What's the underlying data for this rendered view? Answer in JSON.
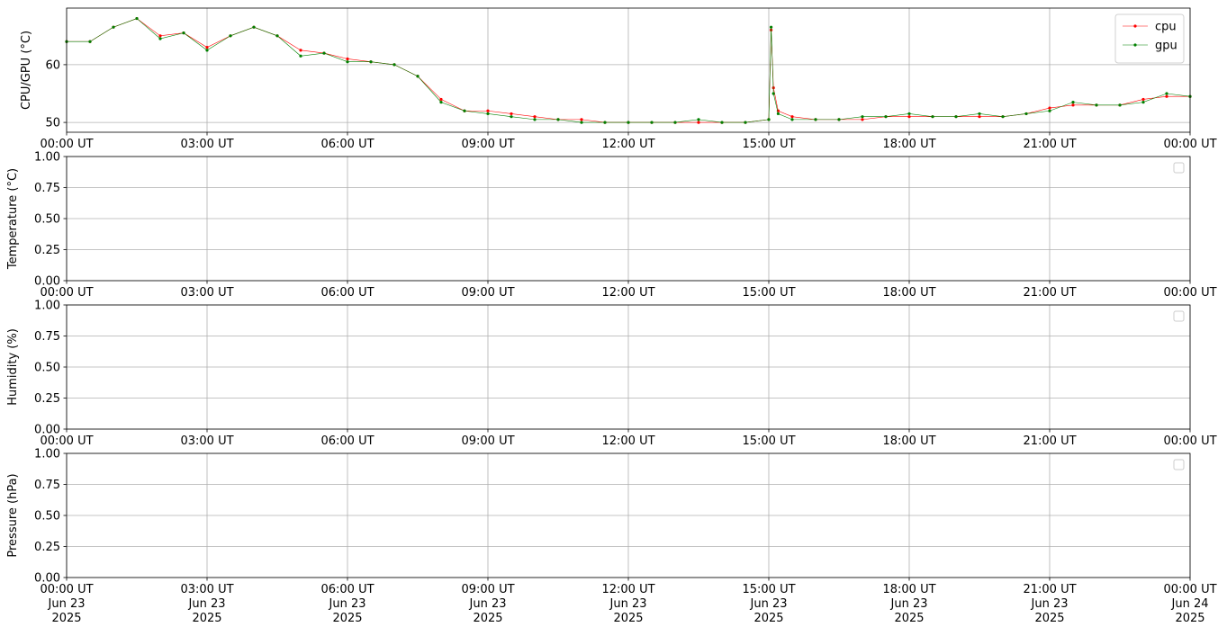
{
  "chart_data": [
    {
      "type": "line",
      "ylabel": "CPU/GPU (°C)",
      "grid": true,
      "legend": "upper right",
      "xlim": [
        "2025-06-23 00:00",
        "2025-06-24 00:00"
      ],
      "xticks": [
        {
          "value": "2025-06-23 00:00",
          "label": "00:00 UT"
        },
        {
          "value": "2025-06-23 03:00",
          "label": "03:00 UT"
        },
        {
          "value": "2025-06-23 06:00",
          "label": "06:00 UT"
        },
        {
          "value": "2025-06-23 09:00",
          "label": "09:00 UT"
        },
        {
          "value": "2025-06-23 12:00",
          "label": "12:00 UT"
        },
        {
          "value": "2025-06-23 15:00",
          "label": "15:00 UT"
        },
        {
          "value": "2025-06-23 18:00",
          "label": "18:00 UT"
        },
        {
          "value": "2025-06-23 21:00",
          "label": "21:00 UT"
        },
        {
          "value": "2025-06-24 00:00",
          "label": "00:00 UT"
        }
      ],
      "ylim": [
        48.3,
        69.8
      ],
      "yticks": [
        50,
        60
      ],
      "x": [
        "2025-06-23 00:00",
        "2025-06-23 00:30",
        "2025-06-23 01:00",
        "2025-06-23 01:30",
        "2025-06-23 02:00",
        "2025-06-23 02:30",
        "2025-06-23 03:00",
        "2025-06-23 03:30",
        "2025-06-23 04:00",
        "2025-06-23 04:30",
        "2025-06-23 05:00",
        "2025-06-23 05:30",
        "2025-06-23 06:00",
        "2025-06-23 06:30",
        "2025-06-23 07:00",
        "2025-06-23 07:30",
        "2025-06-23 08:00",
        "2025-06-23 08:30",
        "2025-06-23 09:00",
        "2025-06-23 09:30",
        "2025-06-23 10:00",
        "2025-06-23 10:30",
        "2025-06-23 11:00",
        "2025-06-23 11:30",
        "2025-06-23 12:00",
        "2025-06-23 12:30",
        "2025-06-23 13:00",
        "2025-06-23 13:30",
        "2025-06-23 14:00",
        "2025-06-23 14:30",
        "2025-06-23 15:00",
        "2025-06-23 15:03",
        "2025-06-23 15:06",
        "2025-06-23 15:12",
        "2025-06-23 15:30",
        "2025-06-23 16:00",
        "2025-06-23 16:30",
        "2025-06-23 17:00",
        "2025-06-23 17:30",
        "2025-06-23 18:00",
        "2025-06-23 18:30",
        "2025-06-23 19:00",
        "2025-06-23 19:30",
        "2025-06-23 20:00",
        "2025-06-23 20:30",
        "2025-06-23 21:00",
        "2025-06-23 21:30",
        "2025-06-23 22:00",
        "2025-06-23 22:30",
        "2025-06-23 23:00",
        "2025-06-23 23:30",
        "2025-06-24 00:00"
      ],
      "series": [
        {
          "name": "cpu",
          "color": "#ff0000",
          "values": [
            64,
            64,
            66.5,
            68,
            65,
            65.5,
            63,
            65,
            66.5,
            65,
            62.5,
            62,
            61,
            60.5,
            60,
            58,
            54,
            52,
            52,
            51.5,
            51,
            50.5,
            50.5,
            50,
            50,
            50,
            50,
            50,
            50,
            50,
            50.5,
            66,
            56,
            52,
            51,
            50.5,
            50.5,
            50.5,
            51,
            51,
            51,
            51,
            51,
            51,
            51.5,
            52.5,
            53,
            53,
            53,
            54,
            54.5,
            54.5
          ]
        },
        {
          "name": "gpu",
          "color": "#008000",
          "values": [
            64,
            64,
            66.5,
            68,
            64.5,
            65.5,
            62.5,
            65,
            66.5,
            65,
            61.5,
            62,
            60.5,
            60.5,
            60,
            58,
            53.5,
            52,
            51.5,
            51,
            50.5,
            50.5,
            50,
            50,
            50,
            50,
            50,
            50.5,
            50,
            50,
            50.5,
            66.5,
            55,
            51.5,
            50.5,
            50.5,
            50.5,
            51,
            51,
            51.5,
            51,
            51,
            51.5,
            51,
            51.5,
            52,
            53.5,
            53,
            53,
            53.5,
            55,
            54.5
          ]
        }
      ]
    },
    {
      "type": "line",
      "ylabel": "Temperature (°C)",
      "grid": true,
      "legend": "upper right",
      "xlim": [
        "2025-06-23 00:00",
        "2025-06-24 00:00"
      ],
      "xticks": [
        {
          "value": "2025-06-23 00:00",
          "label": "00:00 UT"
        },
        {
          "value": "2025-06-23 03:00",
          "label": "03:00 UT"
        },
        {
          "value": "2025-06-23 06:00",
          "label": "06:00 UT"
        },
        {
          "value": "2025-06-23 09:00",
          "label": "09:00 UT"
        },
        {
          "value": "2025-06-23 12:00",
          "label": "12:00 UT"
        },
        {
          "value": "2025-06-23 15:00",
          "label": "15:00 UT"
        },
        {
          "value": "2025-06-23 18:00",
          "label": "18:00 UT"
        },
        {
          "value": "2025-06-23 21:00",
          "label": "21:00 UT"
        },
        {
          "value": "2025-06-24 00:00",
          "label": "00:00 UT"
        }
      ],
      "ylim": [
        0,
        1
      ],
      "yticks": [
        {
          "value": 0,
          "label": "0.00"
        },
        {
          "value": 0.25,
          "label": "0.25"
        },
        {
          "value": 0.5,
          "label": "0.50"
        },
        {
          "value": 0.75,
          "label": "0.75"
        },
        {
          "value": 1,
          "label": "1.00"
        }
      ],
      "series": []
    },
    {
      "type": "line",
      "ylabel": "Humidity (%)",
      "grid": true,
      "legend": "upper right",
      "xlim": [
        "2025-06-23 00:00",
        "2025-06-24 00:00"
      ],
      "xticks": [
        {
          "value": "2025-06-23 00:00",
          "label": "00:00 UT"
        },
        {
          "value": "2025-06-23 03:00",
          "label": "03:00 UT"
        },
        {
          "value": "2025-06-23 06:00",
          "label": "06:00 UT"
        },
        {
          "value": "2025-06-23 09:00",
          "label": "09:00 UT"
        },
        {
          "value": "2025-06-23 12:00",
          "label": "12:00 UT"
        },
        {
          "value": "2025-06-23 15:00",
          "label": "15:00 UT"
        },
        {
          "value": "2025-06-23 18:00",
          "label": "18:00 UT"
        },
        {
          "value": "2025-06-23 21:00",
          "label": "21:00 UT"
        },
        {
          "value": "2025-06-24 00:00",
          "label": "00:00 UT"
        }
      ],
      "ylim": [
        0,
        1
      ],
      "yticks": [
        {
          "value": 0,
          "label": "0.00"
        },
        {
          "value": 0.25,
          "label": "0.25"
        },
        {
          "value": 0.5,
          "label": "0.50"
        },
        {
          "value": 0.75,
          "label": "0.75"
        },
        {
          "value": 1,
          "label": "1.00"
        }
      ],
      "series": []
    },
    {
      "type": "line",
      "ylabel": "Pressure (hPa)",
      "grid": true,
      "legend": "upper right",
      "xlim": [
        "2025-06-23 00:00",
        "2025-06-24 00:00"
      ],
      "xticks": [
        {
          "value": "2025-06-23 00:00",
          "label": "00:00 UT\nJun 23\n2025"
        },
        {
          "value": "2025-06-23 03:00",
          "label": "03:00 UT\nJun 23\n2025"
        },
        {
          "value": "2025-06-23 06:00",
          "label": "06:00 UT\nJun 23\n2025"
        },
        {
          "value": "2025-06-23 09:00",
          "label": "09:00 UT\nJun 23\n2025"
        },
        {
          "value": "2025-06-23 12:00",
          "label": "12:00 UT\nJun 23\n2025"
        },
        {
          "value": "2025-06-23 15:00",
          "label": "15:00 UT\nJun 23\n2025"
        },
        {
          "value": "2025-06-23 18:00",
          "label": "18:00 UT\nJun 23\n2025"
        },
        {
          "value": "2025-06-23 21:00",
          "label": "21:00 UT\nJun 23\n2025"
        },
        {
          "value": "2025-06-24 00:00",
          "label": "00:00 UT\nJun 24\n2025"
        }
      ],
      "ylim": [
        0,
        1
      ],
      "yticks": [
        {
          "value": 0,
          "label": "0.00"
        },
        {
          "value": 0.25,
          "label": "0.25"
        },
        {
          "value": 0.5,
          "label": "0.50"
        },
        {
          "value": 0.75,
          "label": "0.75"
        },
        {
          "value": 1,
          "label": "1.00"
        }
      ],
      "series": []
    }
  ]
}
